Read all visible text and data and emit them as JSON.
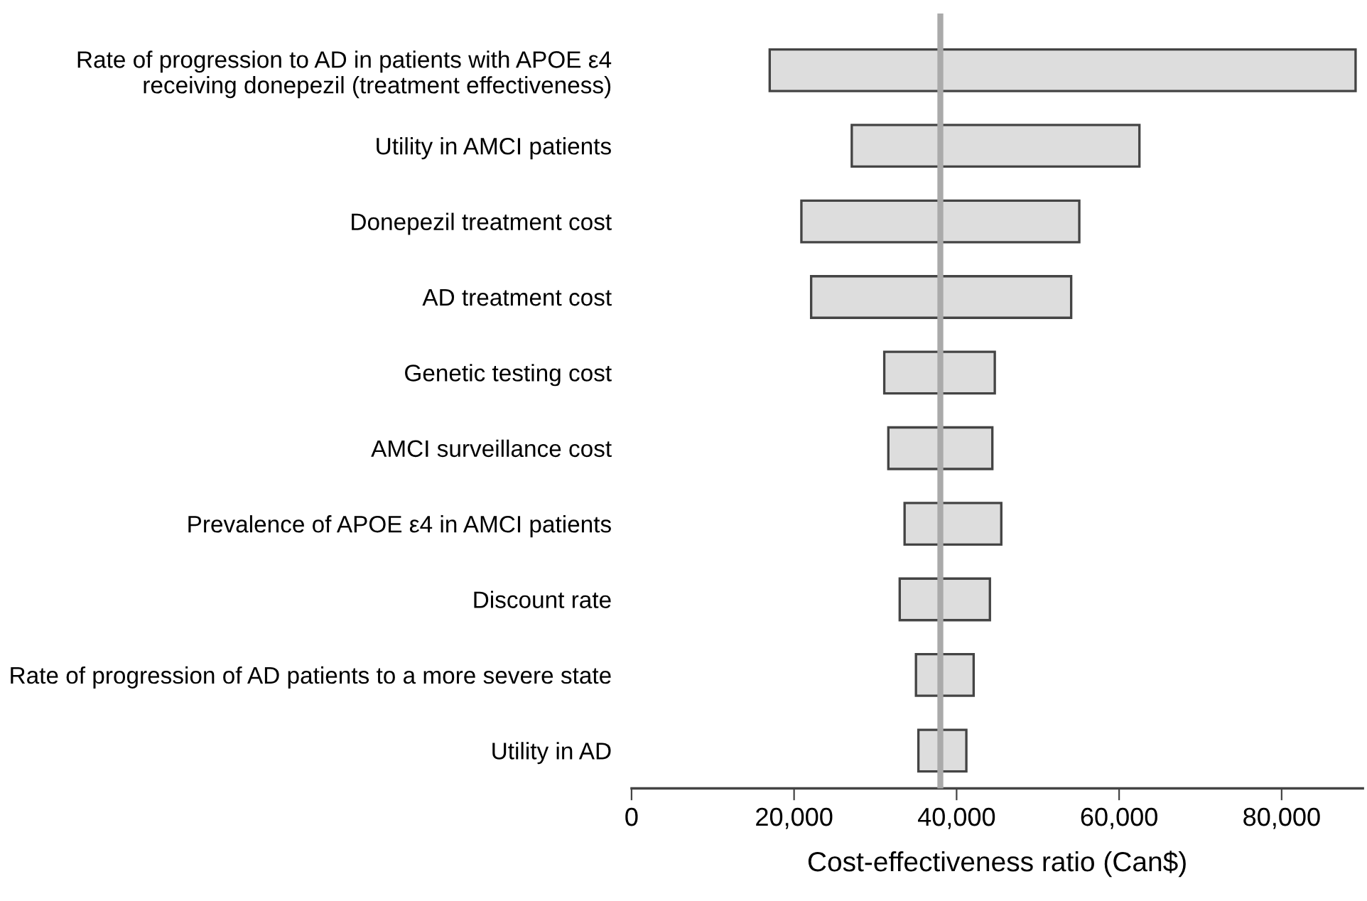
{
  "chart_data": {
    "type": "bar",
    "orientation": "horizontal",
    "xlabel": "Cost-effectiveness ratio (Can$)",
    "categories": [
      "Rate of progression to AD in patients with APOE ε4\nreceiving donepezil (treatment effectiveness)",
      "Utility in AMCI patients",
      "Donepezil treatment cost",
      "AD treatment cost",
      "Genetic testing cost",
      "AMCI surveillance cost",
      "Prevalence of APOE ε4 in AMCI patients",
      "Discount rate",
      "Rate of progression of AD patients to a more severe state",
      "Utility in AD"
    ],
    "base": [
      17000,
      27100,
      20900,
      22100,
      31100,
      31600,
      33600,
      33000,
      35000,
      35300
    ],
    "values": [
      72100,
      35400,
      34200,
      32000,
      13600,
      12800,
      11900,
      11100,
      7100,
      5900
    ],
    "color": "#dddddd",
    "xlim": [
      0,
      90000
    ],
    "xticks": [
      {
        "value": 0,
        "label": "0"
      },
      {
        "value": 20000,
        "label": "20,000"
      },
      {
        "value": 40000,
        "label": "40,000"
      },
      {
        "value": 60000,
        "label": "60,000"
      },
      {
        "value": 80000,
        "label": "80,000"
      }
    ],
    "ref_lines": [
      {
        "axis": "x",
        "value": 38000,
        "label": null,
        "color": "#aaaaaa"
      }
    ],
    "grid": false
  }
}
